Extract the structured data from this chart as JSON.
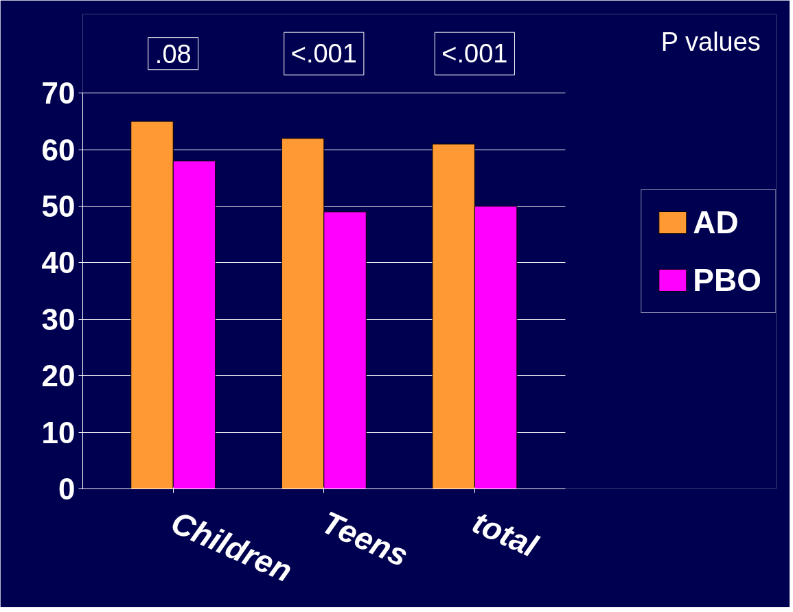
{
  "chart_data": {
    "type": "bar",
    "categories": [
      "Children",
      "Teens",
      "total"
    ],
    "series": [
      {
        "name": "AD",
        "color": "#ff9933",
        "values": [
          65,
          62,
          61
        ]
      },
      {
        "name": "PBO",
        "color": "#ff00ff",
        "values": [
          58,
          49,
          50
        ]
      }
    ],
    "ylim": [
      0,
      70
    ],
    "yticks": [
      0,
      10,
      20,
      30,
      40,
      50,
      60,
      70
    ],
    "grid": "y",
    "legend": "right",
    "annotations": [
      ".08",
      "<.001",
      "<.001",
      "P values"
    ]
  }
}
